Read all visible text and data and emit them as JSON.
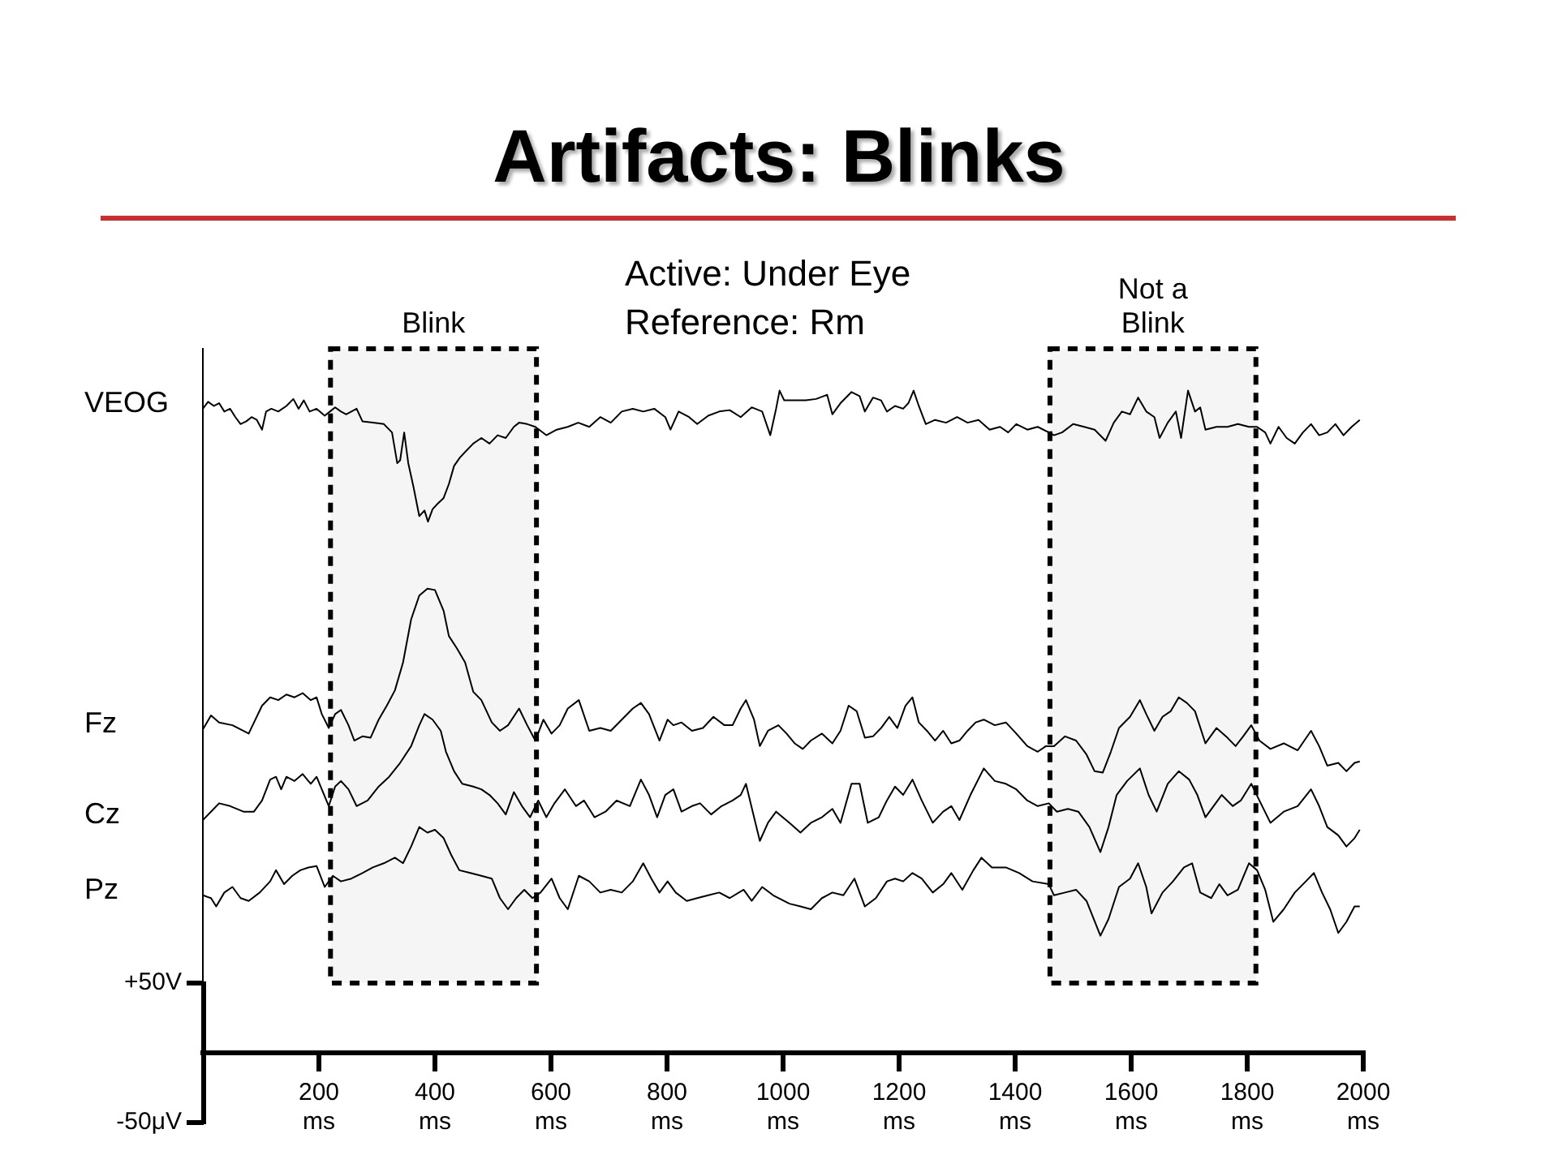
{
  "chart_data": {
    "type": "line",
    "title": "Artifacts: Blinks",
    "annotations": [
      "Active: Under Eye",
      "Reference: Rm"
    ],
    "xlim": [
      0,
      2000
    ],
    "xticks": [
      {
        "value": 200,
        "label": "200\nms"
      },
      {
        "value": 400,
        "label": "400\nms"
      },
      {
        "value": 600,
        "label": "600\nms"
      },
      {
        "value": 800,
        "label": "800\nms"
      },
      {
        "value": 1000,
        "label": "1000\nms"
      },
      {
        "value": 1200,
        "label": "1200\nms"
      },
      {
        "value": 1400,
        "label": "1400\nms"
      },
      {
        "value": 1600,
        "label": "1600\nms"
      },
      {
        "value": 1800,
        "label": "1800\nms"
      },
      {
        "value": 2000,
        "label": "2000\nms"
      }
    ],
    "ylim": [
      -50,
      505
    ],
    "yticks": [
      {
        "value": 50,
        "label": "+50V"
      },
      {
        "value": -50,
        "label": "-50μV"
      }
    ],
    "marker": "none",
    "line_style": "solid",
    "bands": [
      {
        "axis": "x",
        "from": 220,
        "to": 575,
        "label": "Blink",
        "color": "#000000"
      },
      {
        "axis": "x",
        "from": 1460,
        "to": 1815,
        "label": "Not a\nBlink",
        "color": "#000000"
      }
    ],
    "series": [
      {
        "name": "VEOG",
        "color": "#000000",
        "x": [
          0,
          9,
          19,
          28,
          37,
          47,
          56,
          65,
          75,
          84,
          93,
          102,
          109,
          118,
          130,
          144,
          156,
          165,
          174,
          184,
          196,
          210,
          219,
          228,
          238,
          247,
          256,
          265,
          275,
          293,
          312,
          326,
          335,
          340,
          347,
          354,
          363,
          373,
          382,
          388,
          396,
          405,
          415,
          424,
          433,
          443,
          452,
          466,
          480,
          494,
          508,
          522,
          536,
          545,
          559,
          573,
          592,
          610,
          629,
          647,
          666,
          685,
          703,
          722,
          741,
          759,
          778,
          797,
          806,
          820,
          838,
          852,
          871,
          890,
          908,
          927,
          946,
          964,
          978,
          988,
          994,
          1002,
          1016,
          1039,
          1057,
          1076,
          1085,
          1099,
          1118,
          1132,
          1141,
          1155,
          1169,
          1179,
          1193,
          1207,
          1216,
          1225,
          1234,
          1246,
          1262,
          1281,
          1300,
          1318,
          1337,
          1356,
          1374,
          1388,
          1402,
          1421,
          1439,
          1458,
          1467,
          1481,
          1500,
          1519,
          1537,
          1556,
          1570,
          1584,
          1598,
          1612,
          1626,
          1640,
          1649,
          1663,
          1677,
          1686,
          1698,
          1710,
          1719,
          1728,
          1747,
          1766,
          1784,
          1803,
          1817,
          1831,
          1840,
          1854,
          1868,
          1882,
          1896,
          1910,
          1924,
          1938,
          1952,
          1966,
          1980,
          1994
        ],
        "values": [
          462,
          467,
          464,
          466,
          460,
          462,
          456,
          451,
          453,
          456,
          454,
          447,
          460,
          462,
          460,
          464,
          469,
          462,
          468,
          460,
          462,
          457,
          460,
          463,
          460,
          458,
          460,
          462,
          453,
          452,
          451,
          445,
          423,
          425,
          445,
          423,
          406,
          385,
          389,
          381,
          390,
          394,
          398,
          408,
          421,
          427,
          431,
          437,
          441,
          437,
          443,
          441,
          449,
          452,
          451,
          449,
          443,
          447,
          449,
          452,
          449,
          456,
          452,
          460,
          462,
          460,
          462,
          456,
          447,
          460,
          456,
          451,
          457,
          460,
          461,
          456,
          463,
          460,
          443,
          462,
          475,
          468,
          468,
          468,
          469,
          472,
          458,
          466,
          474,
          471,
          460,
          470,
          468,
          460,
          464,
          462,
          466,
          475,
          464,
          451,
          454,
          452,
          456,
          452,
          454,
          447,
          449,
          445,
          451,
          447,
          449,
          445,
          443,
          445,
          451,
          449,
          447,
          439,
          452,
          460,
          458,
          470,
          460,
          456,
          441,
          452,
          460,
          441,
          475,
          460,
          463,
          447,
          449,
          449,
          451,
          449,
          449,
          445,
          437,
          449,
          441,
          437,
          445,
          451,
          443,
          445,
          451,
          443,
          449,
          454
        ]
      },
      {
        "name": "Fz",
        "color": "#000000",
        "x": [
          0,
          14,
          28,
          51,
          79,
          102,
          116,
          130,
          144,
          158,
          172,
          186,
          196,
          205,
          217,
          228,
          238,
          251,
          261,
          275,
          289,
          303,
          317,
          331,
          345,
          359,
          373,
          387,
          400,
          415,
          424,
          438,
          452,
          466,
          480,
          498,
          512,
          526,
          545,
          559,
          573,
          587,
          601,
          615,
          629,
          648,
          666,
          685,
          703,
          722,
          741,
          755,
          769,
          787,
          801,
          811,
          825,
          843,
          862,
          880,
          899,
          913,
          927,
          936,
          950,
          960,
          974,
          992,
          1006,
          1020,
          1034,
          1048,
          1067,
          1085,
          1099,
          1113,
          1127,
          1141,
          1155,
          1169,
          1183,
          1197,
          1211,
          1223,
          1234,
          1248,
          1262,
          1276,
          1290,
          1304,
          1318,
          1332,
          1346,
          1365,
          1384,
          1402,
          1421,
          1439,
          1453,
          1467,
          1486,
          1505,
          1523,
          1537,
          1551,
          1565,
          1579,
          1598,
          1615,
          1626,
          1640,
          1654,
          1668,
          1682,
          1696,
          1710,
          1728,
          1747,
          1766,
          1780,
          1793,
          1807,
          1821,
          1840,
          1863,
          1887,
          1910,
          1924,
          1938,
          1957,
          1971,
          1985,
          1994
        ],
        "values": [
          232,
          242,
          237,
          235,
          229,
          249,
          255,
          253,
          257,
          255,
          258,
          253,
          255,
          243,
          233,
          243,
          246,
          235,
          224,
          227,
          226,
          239,
          249,
          260,
          280,
          311,
          328,
          333,
          332,
          317,
          299,
          290,
          280,
          259,
          253,
          237,
          231,
          235,
          247,
          235,
          224,
          239,
          229,
          235,
          247,
          253,
          231,
          233,
          231,
          239,
          247,
          251,
          243,
          224,
          239,
          235,
          237,
          231,
          233,
          241,
          235,
          235,
          247,
          253,
          239,
          220,
          231,
          235,
          229,
          222,
          218,
          224,
          229,
          222,
          231,
          249,
          245,
          226,
          227,
          233,
          241,
          233,
          249,
          255,
          237,
          231,
          224,
          231,
          222,
          224,
          231,
          237,
          239,
          235,
          237,
          229,
          220,
          216,
          220,
          220,
          227,
          224,
          214,
          202,
          201,
          216,
          233,
          241,
          253,
          243,
          231,
          241,
          245,
          255,
          251,
          245,
          222,
          233,
          226,
          220,
          227,
          235,
          224,
          218,
          222,
          217,
          231,
          220,
          206,
          208,
          202,
          208,
          209
        ]
      },
      {
        "name": "Cz",
        "color": "#000000",
        "x": [
          0,
          14,
          28,
          47,
          70,
          88,
          102,
          116,
          126,
          135,
          144,
          158,
          172,
          186,
          196,
          205,
          217,
          228,
          238,
          251,
          265,
          284,
          303,
          321,
          340,
          359,
          373,
          382,
          396,
          410,
          419,
          433,
          447,
          466,
          480,
          494,
          508,
          522,
          536,
          550,
          564,
          578,
          592,
          606,
          624,
          643,
          657,
          675,
          694,
          713,
          736,
          755,
          769,
          783,
          797,
          811,
          825,
          843,
          857,
          876,
          894,
          913,
          927,
          936,
          950,
          960,
          974,
          988,
          1011,
          1030,
          1048,
          1067,
          1085,
          1099,
          1118,
          1132,
          1146,
          1165,
          1179,
          1193,
          1207,
          1223,
          1239,
          1258,
          1276,
          1290,
          1304,
          1323,
          1346,
          1365,
          1384,
          1402,
          1421,
          1439,
          1458,
          1472,
          1491,
          1509,
          1528,
          1547,
          1561,
          1575,
          1593,
          1615,
          1630,
          1644,
          1663,
          1682,
          1700,
          1714,
          1728,
          1742,
          1756,
          1775,
          1789,
          1807,
          1821,
          1840,
          1863,
          1887,
          1910,
          1924,
          1938,
          1957,
          1971,
          1985,
          1994
        ],
        "values": [
          167,
          173,
          179,
          177,
          173,
          173,
          181,
          196,
          198,
          189,
          198,
          195,
          200,
          193,
          198,
          189,
          177,
          191,
          195,
          189,
          177,
          181,
          191,
          198,
          208,
          220,
          235,
          243,
          239,
          231,
          216,
          202,
          193,
          191,
          189,
          185,
          179,
          171,
          187,
          177,
          169,
          181,
          169,
          179,
          189,
          177,
          181,
          169,
          173,
          181,
          177,
          196,
          185,
          169,
          185,
          189,
          173,
          177,
          179,
          171,
          177,
          181,
          185,
          193,
          169,
          152,
          165,
          173,
          165,
          158,
          165,
          169,
          175,
          165,
          193,
          193,
          165,
          169,
          181,
          191,
          185,
          196,
          181,
          165,
          173,
          177,
          167,
          185,
          204,
          195,
          193,
          189,
          181,
          177,
          179,
          173,
          175,
          173,
          162,
          144,
          162,
          185,
          195,
          204,
          185,
          173,
          193,
          202,
          196,
          185,
          169,
          177,
          185,
          177,
          181,
          193,
          181,
          165,
          173,
          177,
          189,
          177,
          162,
          156,
          148,
          154,
          160
        ]
      },
      {
        "name": "Pz",
        "color": "#000000",
        "x": [
          0,
          14,
          23,
          37,
          51,
          65,
          79,
          98,
          116,
          126,
          140,
          154,
          168,
          182,
          196,
          210,
          224,
          238,
          256,
          275,
          293,
          312,
          331,
          345,
          359,
          373,
          387,
          400,
          415,
          428,
          442,
          461,
          480,
          498,
          512,
          526,
          540,
          554,
          568,
          582,
          601,
          615,
          629,
          648,
          666,
          685,
          703,
          722,
          741,
          759,
          773,
          787,
          801,
          815,
          834,
          852,
          871,
          890,
          908,
          932,
          946,
          964,
          983,
          1011,
          1030,
          1048,
          1067,
          1085,
          1104,
          1123,
          1141,
          1160,
          1179,
          1193,
          1207,
          1223,
          1239,
          1258,
          1276,
          1290,
          1309,
          1328,
          1342,
          1360,
          1384,
          1407,
          1430,
          1458,
          1467,
          1486,
          1505,
          1523,
          1547,
          1561,
          1579,
          1598,
          1612,
          1626,
          1635,
          1654,
          1672,
          1691,
          1705,
          1719,
          1738,
          1752,
          1766,
          1784,
          1803,
          1817,
          1831,
          1845,
          1863,
          1882,
          1901,
          1915,
          1929,
          1943,
          1957,
          1971,
          1985,
          1994
        ],
        "values": [
          113,
          111,
          105,
          115,
          119,
          111,
          109,
          115,
          123,
          131,
          121,
          127,
          131,
          133,
          134,
          119,
          127,
          123,
          125,
          129,
          133,
          136,
          140,
          136,
          148,
          162,
          158,
          160,
          154,
          142,
          131,
          129,
          127,
          125,
          111,
          103,
          111,
          117,
          111,
          115,
          125,
          111,
          103,
          127,
          123,
          115,
          117,
          115,
          123,
          136,
          125,
          115,
          123,
          115,
          109,
          111,
          113,
          115,
          111,
          117,
          109,
          119,
          113,
          107,
          105,
          103,
          111,
          115,
          113,
          125,
          105,
          111,
          123,
          125,
          123,
          129,
          125,
          115,
          121,
          129,
          117,
          131,
          140,
          133,
          133,
          129,
          123,
          121,
          113,
          115,
          117,
          109,
          84,
          96,
          119,
          125,
          136,
          119,
          100,
          115,
          123,
          133,
          136,
          115,
          111,
          121,
          113,
          117,
          136,
          131,
          117,
          94,
          103,
          115,
          123,
          129,
          115,
          103,
          86,
          94,
          105,
          105
        ]
      }
    ]
  }
}
